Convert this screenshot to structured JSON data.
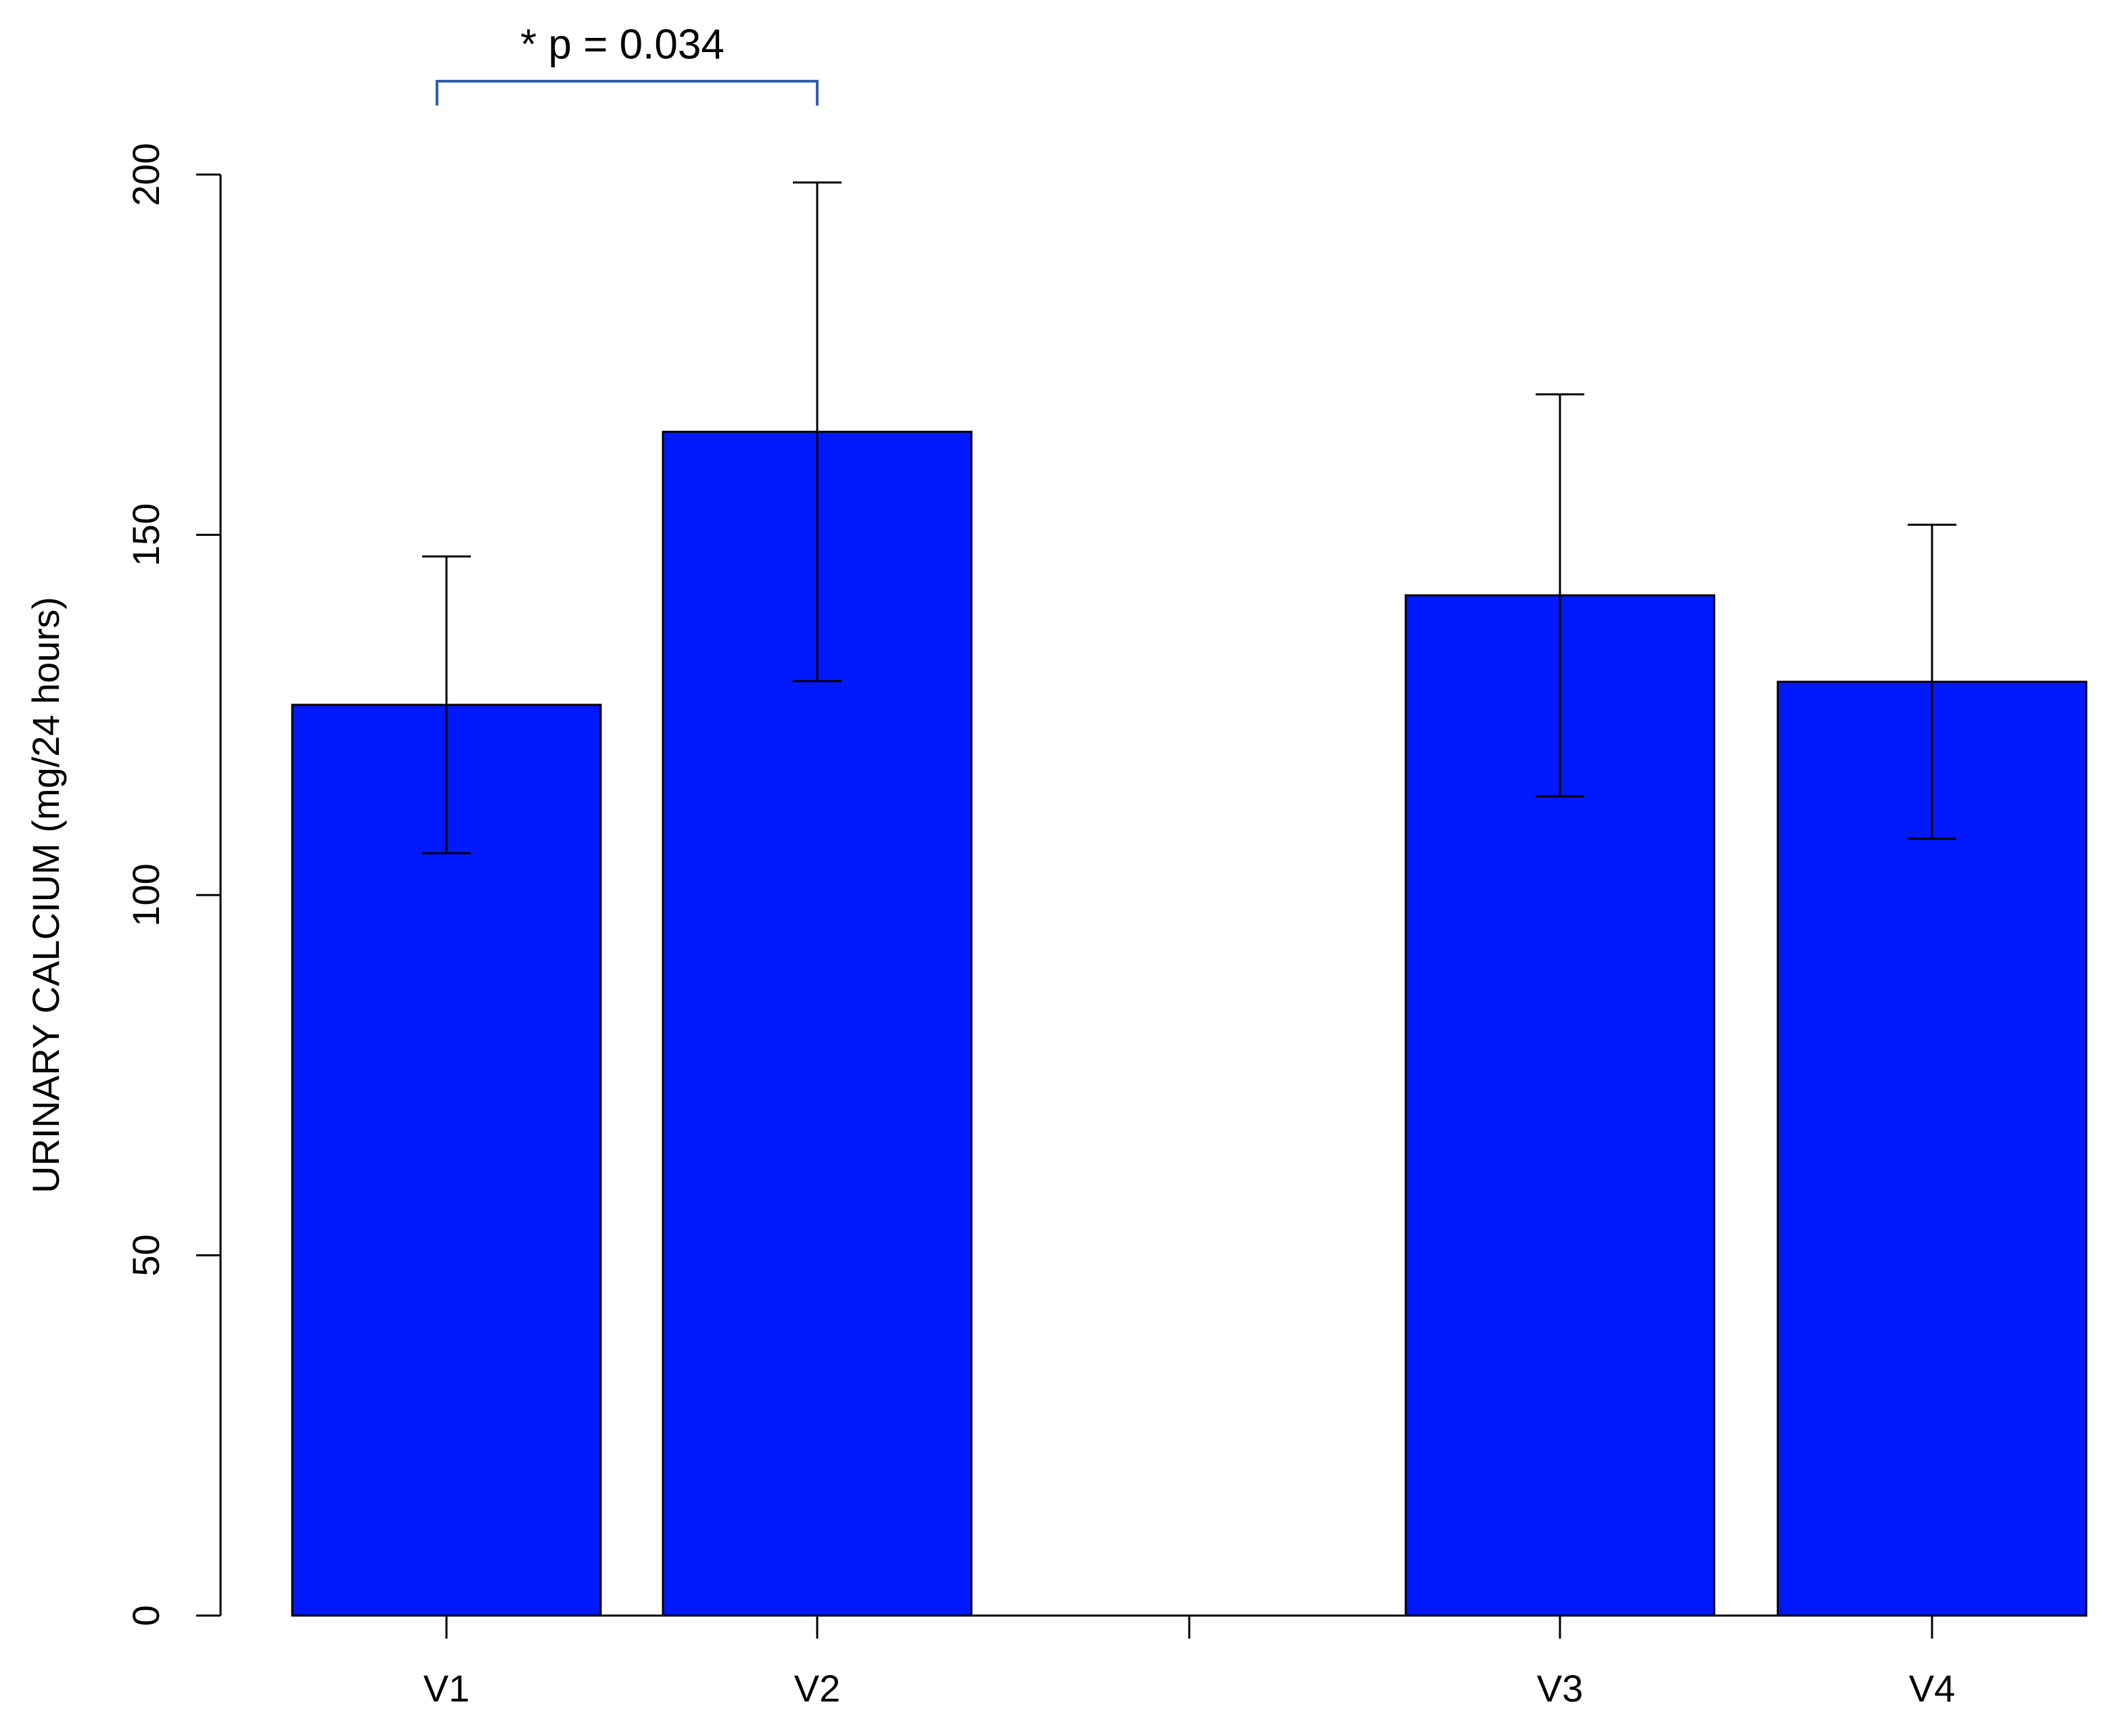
{
  "chart_data": {
    "type": "bar",
    "annotation": "* p = 0.034",
    "ylabel": "URINARY CALCIUM (mg/24 hours)",
    "categories": [
      "V1",
      "V2",
      null,
      "V3",
      "V4"
    ],
    "values": [
      126.4,
      164.3,
      0,
      141.6,
      129.6
    ],
    "errors": [
      20.6,
      34.6,
      null,
      27.9,
      21.8
    ],
    "color": "#0019ff",
    "bracket_color": "#2e5fa8",
    "ylim": [
      0,
      200
    ],
    "yticks": [
      0,
      50,
      100,
      150,
      200
    ],
    "grid": false
  }
}
